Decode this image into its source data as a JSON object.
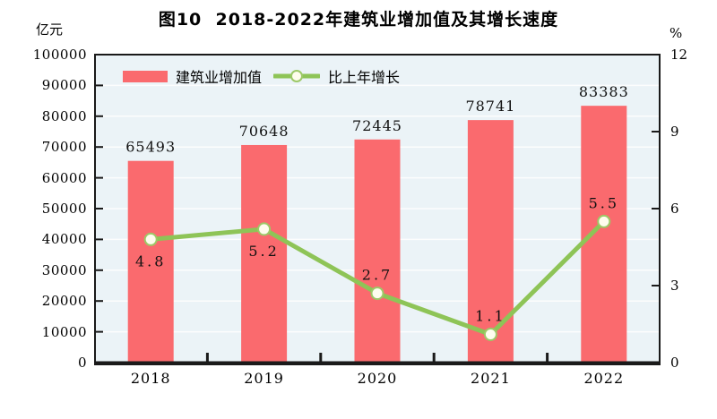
{
  "title": "图10  2018-2022年建筑业增加值及其增长速度",
  "chart_data": {
    "type": "bar",
    "subtype": "bar-line-combo",
    "title": "图10  2018-2022年建筑业增加值及其增长速度",
    "categories": [
      "2018",
      "2019",
      "2020",
      "2021",
      "2022"
    ],
    "series": [
      {
        "name": "建筑业增加值",
        "type": "bar",
        "axis": "left",
        "values": [
          65493,
          70648,
          72445,
          78741,
          83383
        ],
        "data_labels": [
          "65493",
          "70648",
          "72445",
          "78741",
          "83383"
        ],
        "color": "#fa6a6e"
      },
      {
        "name": "比上年增长",
        "type": "line",
        "axis": "right",
        "values": [
          4.8,
          5.2,
          2.7,
          1.1,
          5.5
        ],
        "data_labels": [
          "4.8",
          "5.2",
          "2.7",
          "1.1",
          "5.5"
        ],
        "label_side": [
          "below",
          "below",
          "above",
          "above",
          "above"
        ],
        "color": "#8ec457",
        "marker_fill": "#fffdee",
        "marker_stroke": "#9dc968"
      }
    ],
    "left_axis": {
      "unit": "亿元",
      "min": 0,
      "max": 100000,
      "step": 10000,
      "tick_labels": [
        "0",
        "10000",
        "20000",
        "30000",
        "40000",
        "50000",
        "60000",
        "70000",
        "80000",
        "90000",
        "100000"
      ]
    },
    "right_axis": {
      "unit": "%",
      "min": 0,
      "max": 12,
      "step": 3,
      "tick_labels": [
        "0",
        "3",
        "6",
        "9",
        "12"
      ]
    },
    "grid": "horizontal",
    "legend_position": "top-left-inside",
    "plot_bg": "#ebf3f7",
    "grid_color": "#ffffff",
    "axis_color": "#1a1a1a"
  }
}
